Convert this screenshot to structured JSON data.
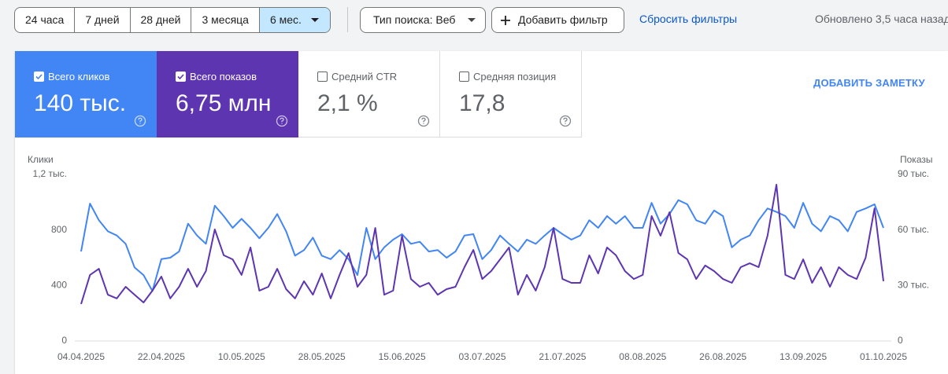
{
  "toolbar": {
    "date_ranges": [
      "24 часа",
      "7 дней",
      "28 дней",
      "3 месяца",
      "6 мес."
    ],
    "selected_range": 4,
    "search_type": "Тип поиска: Веб",
    "add_filter": "Добавить фильтр",
    "reset_filters": "Сбросить фильтры",
    "updated": "Обновлено 3,5 часа назад"
  },
  "metrics": [
    {
      "label": "Всего кликов",
      "value": "140 тыс.",
      "checked": true,
      "color": "#4285f4"
    },
    {
      "label": "Всего показов",
      "value": "6,75 млн",
      "checked": true,
      "color": "#5e35b1"
    },
    {
      "label": "Средний CTR",
      "value": "2,1 %",
      "checked": false
    },
    {
      "label": "Средняя позиция",
      "value": "17,8",
      "checked": false
    }
  ],
  "add_note": "ДОБАВИТЬ ЗАМЕТКУ",
  "chart_data": {
    "type": "line",
    "ylabel": "Клики",
    "y2label": "Показы",
    "categories": [
      "04.04.2025",
      null,
      null,
      null,
      null,
      null,
      null,
      null,
      null,
      "22.04.2025",
      null,
      null,
      null,
      null,
      null,
      null,
      null,
      null,
      "10.05.2025",
      null,
      null,
      null,
      null,
      null,
      null,
      null,
      null,
      "28.05.2025",
      null,
      null,
      null,
      null,
      null,
      null,
      null,
      null,
      "15.06.2025",
      null,
      null,
      null,
      null,
      null,
      null,
      null,
      null,
      "03.07.2025",
      null,
      null,
      null,
      null,
      null,
      null,
      null,
      null,
      "21.07.2025",
      null,
      null,
      null,
      null,
      null,
      null,
      null,
      null,
      "08.08.2025",
      null,
      null,
      null,
      null,
      null,
      null,
      null,
      null,
      "26.08.2025",
      null,
      null,
      null,
      null,
      null,
      null,
      null,
      null,
      "13.09.2025",
      null,
      null,
      null,
      null,
      null,
      null,
      null,
      null,
      "01.10.2025"
    ],
    "series": [
      {
        "color": "#4285f4",
        "values": [
          645,
          990,
          870,
          790,
          760,
          700,
          530,
          475,
          360,
          590,
          600,
          645,
          845,
          760,
          700,
          975,
          900,
          815,
          880,
          815,
          740,
          815,
          915,
          790,
          615,
          655,
          745,
          615,
          590,
          655,
          590,
          475,
          815,
          590,
          675,
          730,
          770,
          700,
          715,
          645,
          655,
          600,
          645,
          760,
          770,
          590,
          655,
          760,
          700,
          645,
          730,
          700,
          760,
          815,
          770,
          730,
          760,
          870,
          815,
          900,
          845,
          900,
          815,
          815,
          995,
          845,
          915,
          1015,
          985,
          870,
          845,
          940,
          900,
          675,
          730,
          760,
          870,
          955,
          930,
          900,
          815,
          995,
          845,
          790,
          900,
          870,
          790,
          930,
          955,
          985,
          815
        ]
      },
      {
        "color": "#5e35b1",
        "axis": "y2",
        "values": [
          20000,
          35700,
          39000,
          25000,
          23000,
          29300,
          25000,
          20800,
          27200,
          34800,
          23000,
          29300,
          39000,
          29300,
          37800,
          60300,
          46300,
          44100,
          35700,
          50500,
          27200,
          29300,
          39000,
          28000,
          23000,
          32300,
          25000,
          36500,
          23000,
          35700,
          47500,
          29300,
          35700,
          61100,
          25000,
          27200,
          56900,
          33500,
          29300,
          31400,
          25000,
          28000,
          29300,
          39900,
          49200,
          33500,
          37800,
          44100,
          50500,
          25000,
          35700,
          27200,
          39900,
          61100,
          33500,
          31400,
          31400,
          46300,
          36500,
          50500,
          46300,
          37800,
          33500,
          35700,
          67500,
          56900,
          69600,
          47500,
          44100,
          33500,
          40800,
          37800,
          33500,
          31400,
          39900,
          42000,
          39900,
          56900,
          84500,
          35700,
          33500,
          44100,
          31400,
          39900,
          29300,
          39900,
          35700,
          33500,
          45000,
          71700,
          32300
        ]
      }
    ],
    "ylim": [
      0,
      1200
    ],
    "yticks": [
      0,
      400,
      800,
      {
        "value": 1200,
        "label": "1,2 тыс."
      }
    ],
    "y2lim": [
      0,
      90000
    ],
    "y2ticks": [
      0,
      {
        "value": 30000,
        "label": "30 тыс."
      },
      {
        "value": 60000,
        "label": "60 тыс."
      },
      {
        "value": 90000,
        "label": "90 тыс."
      }
    ],
    "grid": false
  }
}
